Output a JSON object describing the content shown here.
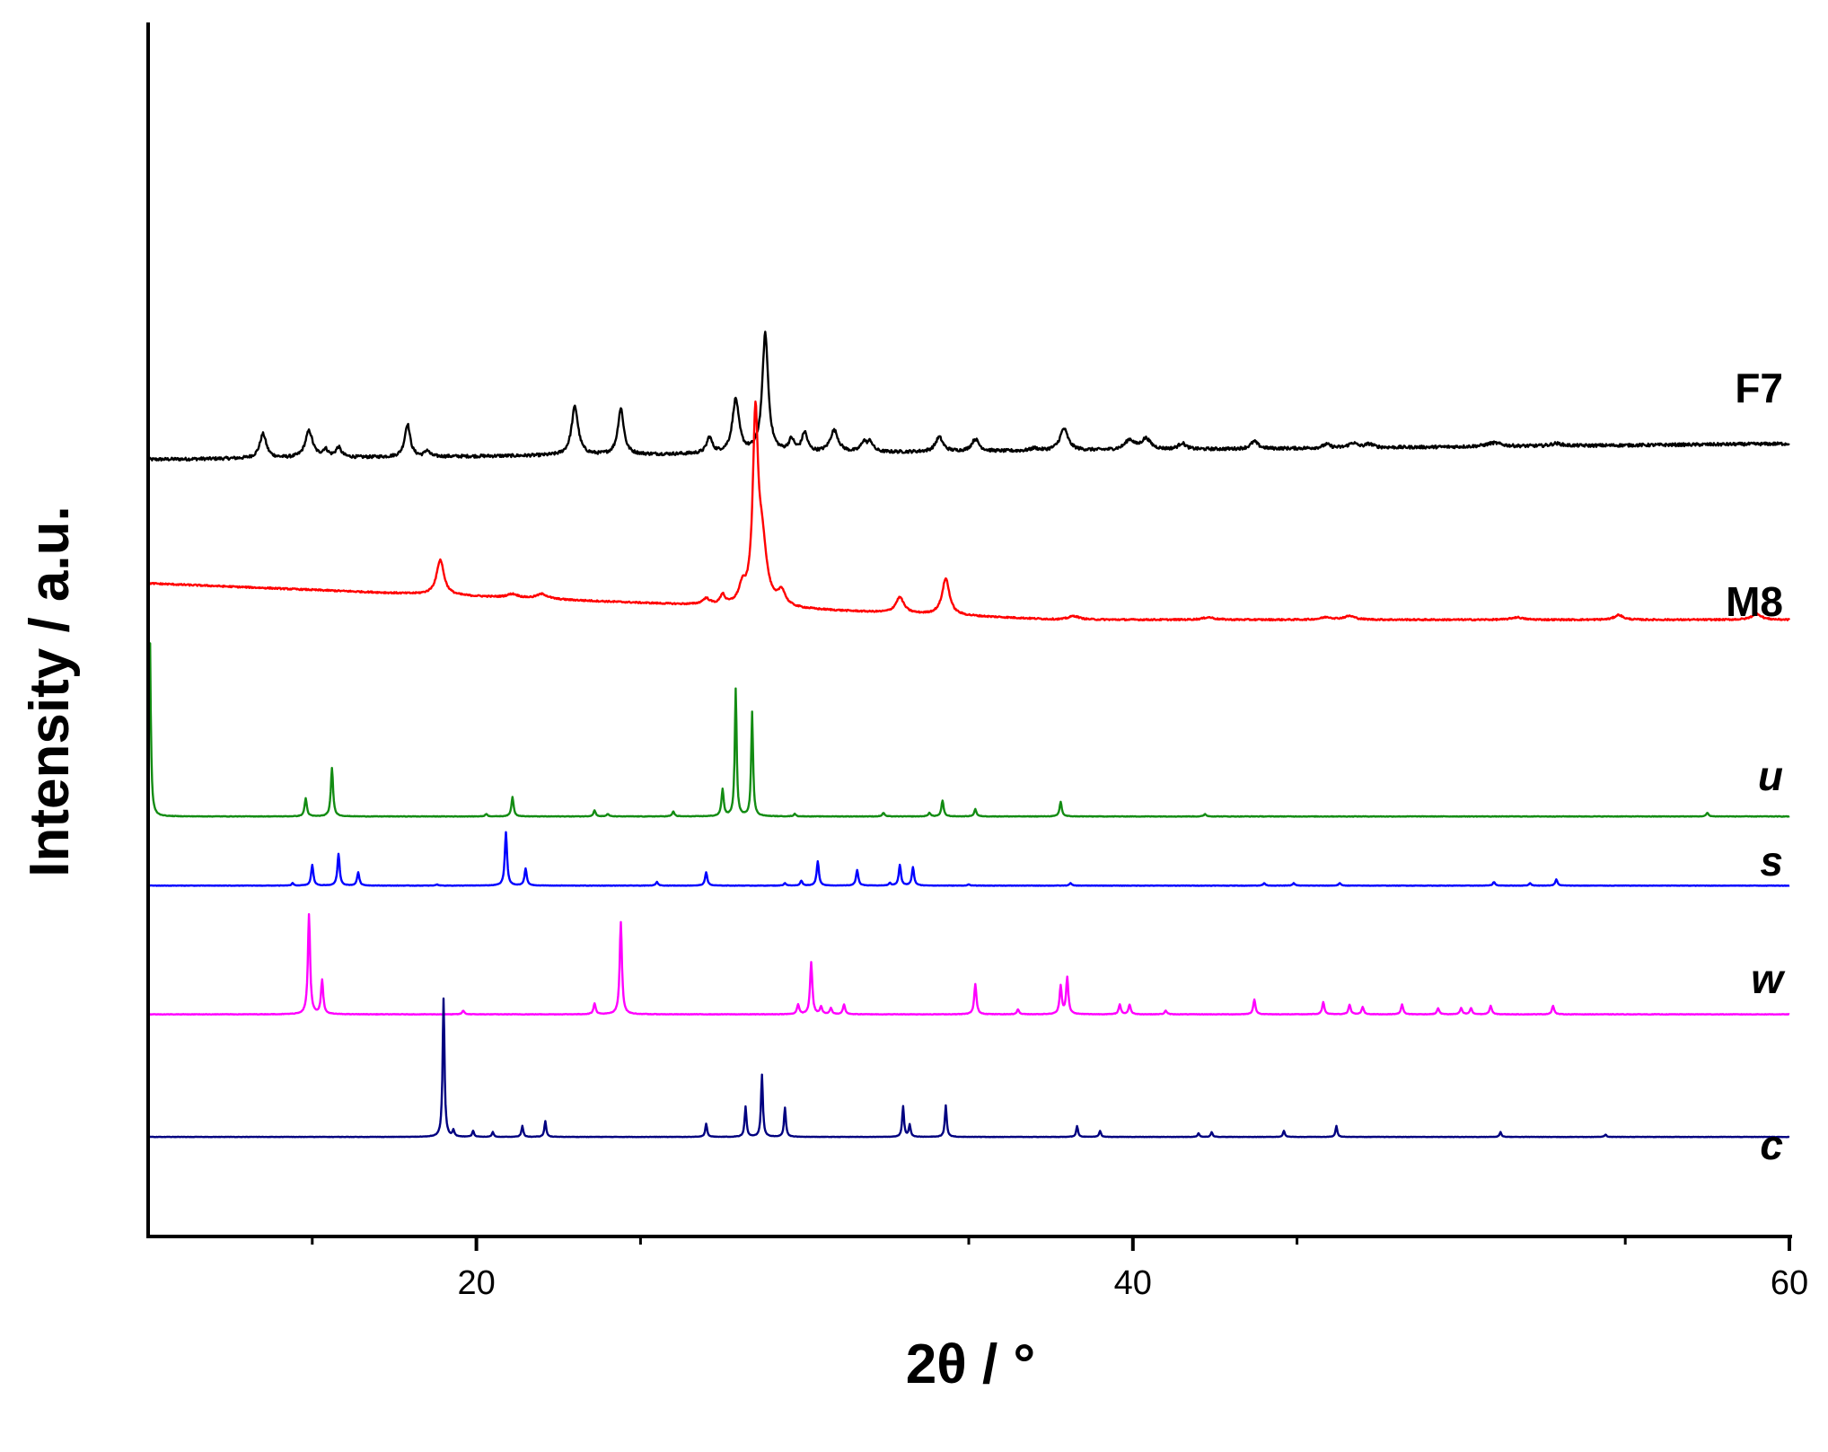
{
  "chart_data": {
    "type": "line",
    "xlabel": "2θ / °",
    "ylabel": "Intensity / a.u.",
    "xlim": [
      10,
      60
    ],
    "x_ticks": [
      20,
      40,
      60
    ],
    "x_tick_labels": [
      "20",
      "40",
      "60"
    ],
    "y_ticks_shown": false,
    "grid": false,
    "legend": "inline labels at right end of each trace",
    "series": [
      {
        "name": "F7",
        "style": "normal",
        "color": "#000000",
        "baseline": 0.64,
        "noise": 0.0025,
        "slope": [
          0.64,
          0.653
        ],
        "peaks": [
          [
            13.5,
            0.02,
            0.18
          ],
          [
            14.9,
            0.022,
            0.2
          ],
          [
            15.4,
            0.006,
            0.15
          ],
          [
            15.8,
            0.008,
            0.15
          ],
          [
            17.9,
            0.027,
            0.15
          ],
          [
            18.5,
            0.005,
            0.12
          ],
          [
            23.0,
            0.04,
            0.18
          ],
          [
            24.4,
            0.038,
            0.16
          ],
          [
            27.1,
            0.013,
            0.15
          ],
          [
            27.9,
            0.044,
            0.18
          ],
          [
            28.8,
            0.098,
            0.16
          ],
          [
            29.6,
            0.01,
            0.15
          ],
          [
            30.0,
            0.016,
            0.15
          ],
          [
            30.9,
            0.018,
            0.22
          ],
          [
            31.8,
            0.008,
            0.15
          ],
          [
            32.0,
            0.008,
            0.15
          ],
          [
            34.1,
            0.012,
            0.2
          ],
          [
            35.2,
            0.01,
            0.2
          ],
          [
            37.0,
            0.002,
            0.2
          ],
          [
            37.9,
            0.018,
            0.22
          ],
          [
            39.9,
            0.008,
            0.25
          ],
          [
            40.4,
            0.009,
            0.25
          ],
          [
            41.5,
            0.005,
            0.2
          ],
          [
            43.7,
            0.006,
            0.2
          ],
          [
            45.9,
            0.003,
            0.2
          ],
          [
            46.7,
            0.004,
            0.22
          ],
          [
            47.2,
            0.003,
            0.22
          ],
          [
            51.0,
            0.003,
            0.4
          ],
          [
            52.9,
            0.002,
            0.3
          ]
        ]
      },
      {
        "name": "M8",
        "style": "normal",
        "color": "#ff0000",
        "baseline": 0.54,
        "noise": 0.0012,
        "slope": [
          0.508,
          0.536
        ],
        "peaks": [
          [
            18.9,
            0.029,
            0.2
          ],
          [
            21.1,
            0.003,
            0.3
          ],
          [
            22.0,
            0.004,
            0.3
          ],
          [
            27.0,
            0.005,
            0.2
          ],
          [
            27.5,
            0.008,
            0.12
          ],
          [
            28.1,
            0.013,
            0.18
          ],
          [
            28.5,
            0.147,
            0.14
          ],
          [
            28.7,
            0.05,
            0.25
          ],
          [
            29.3,
            0.012,
            0.2
          ],
          [
            32.9,
            0.013,
            0.22
          ],
          [
            34.3,
            0.03,
            0.2
          ],
          [
            38.2,
            0.003,
            0.3
          ],
          [
            42.3,
            0.002,
            0.3
          ],
          [
            45.9,
            0.002,
            0.3
          ],
          [
            46.6,
            0.003,
            0.3
          ],
          [
            51.7,
            0.002,
            0.3
          ],
          [
            54.8,
            0.004,
            0.22
          ],
          [
            59.0,
            0.005,
            0.25
          ]
        ]
      },
      {
        "name": "u",
        "style": "italic",
        "color": "#138c13",
        "baseline": 0.346,
        "noise": 0.0004,
        "slope": [
          0.346,
          0.346
        ],
        "peaks": [
          [
            10.05,
            0.155,
            0.05
          ],
          [
            14.8,
            0.015,
            0.06
          ],
          [
            15.6,
            0.04,
            0.06
          ],
          [
            20.3,
            0.002,
            0.06
          ],
          [
            21.1,
            0.016,
            0.06
          ],
          [
            23.6,
            0.005,
            0.06
          ],
          [
            24.0,
            0.002,
            0.06
          ],
          [
            26.0,
            0.004,
            0.06
          ],
          [
            27.5,
            0.022,
            0.06
          ],
          [
            27.9,
            0.105,
            0.05
          ],
          [
            28.4,
            0.086,
            0.05
          ],
          [
            29.7,
            0.002,
            0.06
          ],
          [
            32.4,
            0.003,
            0.06
          ],
          [
            33.8,
            0.003,
            0.06
          ],
          [
            34.2,
            0.013,
            0.06
          ],
          [
            35.2,
            0.006,
            0.06
          ],
          [
            37.8,
            0.012,
            0.06
          ],
          [
            42.2,
            0.002,
            0.06
          ],
          [
            57.5,
            0.003,
            0.06
          ]
        ]
      },
      {
        "name": "s",
        "style": "italic",
        "color": "#0000ff",
        "baseline": 0.289,
        "noise": 0.0003,
        "slope": [
          0.289,
          0.289
        ],
        "peaks": [
          [
            14.4,
            0.002,
            0.05
          ],
          [
            15.0,
            0.017,
            0.06
          ],
          [
            15.8,
            0.026,
            0.06
          ],
          [
            16.4,
            0.011,
            0.06
          ],
          [
            18.8,
            0.001,
            0.06
          ],
          [
            20.9,
            0.044,
            0.06
          ],
          [
            21.5,
            0.014,
            0.06
          ],
          [
            25.5,
            0.003,
            0.06
          ],
          [
            27.0,
            0.011,
            0.06
          ],
          [
            29.4,
            0.002,
            0.06
          ],
          [
            29.9,
            0.004,
            0.06
          ],
          [
            30.4,
            0.02,
            0.06
          ],
          [
            31.6,
            0.013,
            0.06
          ],
          [
            32.6,
            0.002,
            0.06
          ],
          [
            32.9,
            0.017,
            0.06
          ],
          [
            33.3,
            0.015,
            0.06
          ],
          [
            35.0,
            0.001,
            0.06
          ],
          [
            38.1,
            0.002,
            0.06
          ],
          [
            44.0,
            0.002,
            0.06
          ],
          [
            44.9,
            0.002,
            0.06
          ],
          [
            46.3,
            0.002,
            0.06
          ],
          [
            51.0,
            0.003,
            0.06
          ],
          [
            52.1,
            0.002,
            0.06
          ],
          [
            52.9,
            0.005,
            0.06
          ]
        ]
      },
      {
        "name": "w",
        "style": "italic",
        "color": "#ff00ff",
        "baseline": 0.183,
        "noise": 0.0004,
        "slope": [
          0.183,
          0.183
        ],
        "peaks": [
          [
            14.9,
            0.082,
            0.06
          ],
          [
            15.3,
            0.028,
            0.06
          ],
          [
            19.6,
            0.003,
            0.06
          ],
          [
            23.6,
            0.009,
            0.06
          ],
          [
            24.4,
            0.076,
            0.06
          ],
          [
            29.8,
            0.008,
            0.06
          ],
          [
            30.2,
            0.043,
            0.06
          ],
          [
            30.5,
            0.006,
            0.06
          ],
          [
            30.8,
            0.005,
            0.06
          ],
          [
            31.2,
            0.008,
            0.06
          ],
          [
            35.2,
            0.025,
            0.06
          ],
          [
            36.5,
            0.004,
            0.06
          ],
          [
            37.8,
            0.023,
            0.06
          ],
          [
            38.0,
            0.03,
            0.06
          ],
          [
            39.6,
            0.008,
            0.06
          ],
          [
            39.9,
            0.008,
            0.06
          ],
          [
            41.0,
            0.003,
            0.06
          ],
          [
            43.7,
            0.012,
            0.06
          ],
          [
            45.8,
            0.01,
            0.06
          ],
          [
            46.6,
            0.008,
            0.06
          ],
          [
            47.0,
            0.006,
            0.06
          ],
          [
            48.2,
            0.008,
            0.06
          ],
          [
            49.3,
            0.005,
            0.06
          ],
          [
            50.0,
            0.005,
            0.06
          ],
          [
            50.3,
            0.005,
            0.06
          ],
          [
            50.9,
            0.007,
            0.06
          ],
          [
            52.8,
            0.007,
            0.06
          ]
        ]
      },
      {
        "name": "c",
        "style": "italic",
        "color": "#000080",
        "baseline": 0.082,
        "noise": 0.0003,
        "slope": [
          0.082,
          0.082
        ],
        "peaks": [
          [
            19.0,
            0.114,
            0.05
          ],
          [
            19.3,
            0.005,
            0.05
          ],
          [
            19.9,
            0.005,
            0.05
          ],
          [
            20.5,
            0.004,
            0.05
          ],
          [
            21.4,
            0.009,
            0.05
          ],
          [
            22.1,
            0.013,
            0.05
          ],
          [
            27.0,
            0.011,
            0.05
          ],
          [
            28.2,
            0.025,
            0.05
          ],
          [
            28.7,
            0.051,
            0.05
          ],
          [
            29.4,
            0.024,
            0.05
          ],
          [
            33.0,
            0.025,
            0.05
          ],
          [
            33.2,
            0.01,
            0.05
          ],
          [
            34.3,
            0.026,
            0.05
          ],
          [
            38.3,
            0.009,
            0.05
          ],
          [
            39.0,
            0.005,
            0.05
          ],
          [
            42.0,
            0.003,
            0.05
          ],
          [
            42.4,
            0.004,
            0.05
          ],
          [
            44.6,
            0.005,
            0.05
          ],
          [
            46.2,
            0.009,
            0.05
          ],
          [
            51.2,
            0.004,
            0.05
          ],
          [
            54.4,
            0.002,
            0.05
          ]
        ]
      }
    ]
  }
}
